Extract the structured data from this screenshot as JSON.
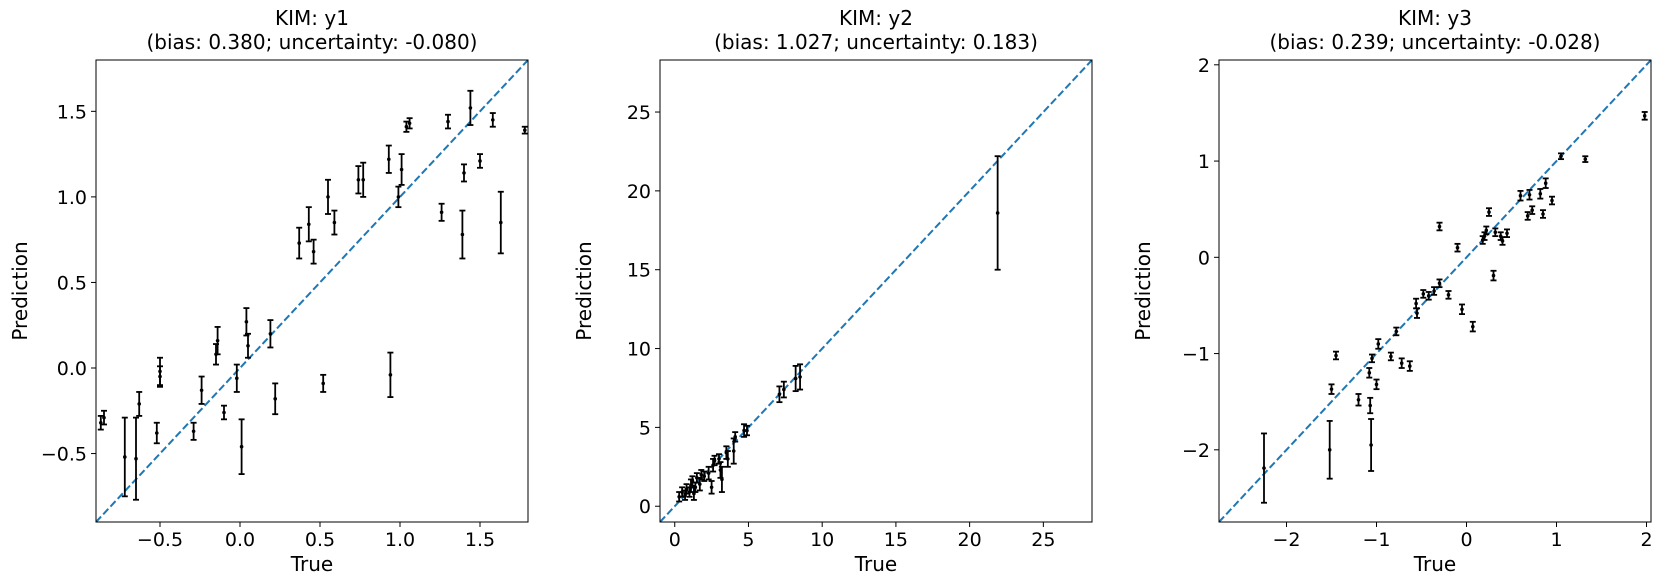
{
  "chart_data": [
    {
      "type": "scatter",
      "title": "KIM: y1",
      "subtitle": "(bias: 0.380; uncertainty: -0.080)",
      "xlabel": "True",
      "ylabel": "Prediction",
      "xlim": [
        -0.9,
        1.8
      ],
      "ylim": [
        -0.9,
        1.8
      ],
      "xticks": [
        -0.5,
        0.0,
        0.5,
        1.0,
        1.5
      ],
      "xtick_labels": [
        "−0.5",
        "0.0",
        "0.5",
        "1.0",
        "1.5"
      ],
      "yticks": [
        -0.5,
        0.0,
        0.5,
        1.0,
        1.5
      ],
      "ytick_labels": [
        "−0.5",
        "0.0",
        "0.5",
        "1.0",
        "1.5"
      ],
      "reference_line": "y = x",
      "colors": {
        "reference": "#1f77b4",
        "points": "#000000"
      },
      "points": [
        {
          "x": -0.87,
          "y": -0.32,
          "err": 0.04
        },
        {
          "x": -0.85,
          "y": -0.29,
          "err": 0.04
        },
        {
          "x": -0.72,
          "y": -0.52,
          "err": 0.23
        },
        {
          "x": -0.65,
          "y": -0.53,
          "err": 0.24
        },
        {
          "x": -0.63,
          "y": -0.21,
          "err": 0.07
        },
        {
          "x": -0.52,
          "y": -0.38,
          "err": 0.06
        },
        {
          "x": -0.5,
          "y": -0.02,
          "err": 0.08
        },
        {
          "x": -0.5,
          "y": -0.05,
          "err": 0.06
        },
        {
          "x": -0.29,
          "y": -0.37,
          "err": 0.05
        },
        {
          "x": -0.24,
          "y": -0.13,
          "err": 0.08
        },
        {
          "x": -0.15,
          "y": 0.08,
          "err": 0.06
        },
        {
          "x": -0.14,
          "y": 0.16,
          "err": 0.08
        },
        {
          "x": -0.1,
          "y": -0.26,
          "err": 0.04
        },
        {
          "x": -0.02,
          "y": -0.06,
          "err": 0.08
        },
        {
          "x": 0.01,
          "y": -0.46,
          "err": 0.16
        },
        {
          "x": 0.04,
          "y": 0.27,
          "err": 0.08
        },
        {
          "x": 0.05,
          "y": 0.13,
          "err": 0.07
        },
        {
          "x": 0.19,
          "y": 0.2,
          "err": 0.08
        },
        {
          "x": 0.22,
          "y": -0.18,
          "err": 0.09
        },
        {
          "x": 0.37,
          "y": 0.73,
          "err": 0.09
        },
        {
          "x": 0.43,
          "y": 0.84,
          "err": 0.1
        },
        {
          "x": 0.46,
          "y": 0.68,
          "err": 0.07
        },
        {
          "x": 0.52,
          "y": -0.09,
          "err": 0.05
        },
        {
          "x": 0.55,
          "y": 1.0,
          "err": 0.1
        },
        {
          "x": 0.59,
          "y": 0.85,
          "err": 0.07
        },
        {
          "x": 0.74,
          "y": 1.1,
          "err": 0.08
        },
        {
          "x": 0.77,
          "y": 1.1,
          "err": 0.1
        },
        {
          "x": 0.93,
          "y": 1.22,
          "err": 0.08
        },
        {
          "x": 0.94,
          "y": -0.04,
          "err": 0.13
        },
        {
          "x": 0.99,
          "y": 1.0,
          "err": 0.06
        },
        {
          "x": 1.01,
          "y": 1.16,
          "err": 0.09
        },
        {
          "x": 1.04,
          "y": 1.41,
          "err": 0.03
        },
        {
          "x": 1.06,
          "y": 1.43,
          "err": 0.03
        },
        {
          "x": 1.26,
          "y": 0.91,
          "err": 0.05
        },
        {
          "x": 1.3,
          "y": 1.44,
          "err": 0.04
        },
        {
          "x": 1.39,
          "y": 0.78,
          "err": 0.14
        },
        {
          "x": 1.4,
          "y": 1.14,
          "err": 0.05
        },
        {
          "x": 1.44,
          "y": 1.52,
          "err": 0.1
        },
        {
          "x": 1.5,
          "y": 1.21,
          "err": 0.04
        },
        {
          "x": 1.58,
          "y": 1.45,
          "err": 0.04
        },
        {
          "x": 1.63,
          "y": 0.85,
          "err": 0.18
        },
        {
          "x": 1.78,
          "y": 1.39,
          "err": 0.02
        }
      ]
    },
    {
      "type": "scatter",
      "title": "KIM: y2",
      "subtitle": "(bias: 1.027; uncertainty: 0.183)",
      "xlabel": "True",
      "ylabel": "Prediction",
      "xlim": [
        -1,
        28.3
      ],
      "ylim": [
        -1,
        28.3
      ],
      "xticks": [
        0,
        5,
        10,
        15,
        20,
        25
      ],
      "xtick_labels": [
        "0",
        "5",
        "10",
        "15",
        "20",
        "25"
      ],
      "yticks": [
        0,
        5,
        10,
        15,
        20,
        25
      ],
      "ytick_labels": [
        "0",
        "5",
        "10",
        "15",
        "20",
        "25"
      ],
      "reference_line": "y = x",
      "colors": {
        "reference": "#1f77b4",
        "points": "#000000"
      },
      "points": [
        {
          "x": 0.3,
          "y": 0.6,
          "err": 0.3
        },
        {
          "x": 0.5,
          "y": 0.9,
          "err": 0.3
        },
        {
          "x": 0.7,
          "y": 0.7,
          "err": 0.3
        },
        {
          "x": 0.8,
          "y": 1.1,
          "err": 0.3
        },
        {
          "x": 1.0,
          "y": 0.9,
          "err": 0.3
        },
        {
          "x": 1.1,
          "y": 1.3,
          "err": 0.4
        },
        {
          "x": 1.2,
          "y": 1.6,
          "err": 0.3
        },
        {
          "x": 1.3,
          "y": 0.8,
          "err": 0.4
        },
        {
          "x": 1.4,
          "y": 1.2,
          "err": 0.3
        },
        {
          "x": 1.5,
          "y": 1.8,
          "err": 0.3
        },
        {
          "x": 1.7,
          "y": 1.4,
          "err": 0.4
        },
        {
          "x": 1.8,
          "y": 2.0,
          "err": 0.3
        },
        {
          "x": 2.0,
          "y": 1.9,
          "err": 0.3
        },
        {
          "x": 2.3,
          "y": 2.1,
          "err": 0.4
        },
        {
          "x": 2.5,
          "y": 1.2,
          "err": 0.4
        },
        {
          "x": 2.6,
          "y": 2.6,
          "err": 0.4
        },
        {
          "x": 2.7,
          "y": 2.9,
          "err": 0.3
        },
        {
          "x": 3.0,
          "y": 3.0,
          "err": 0.3
        },
        {
          "x": 3.1,
          "y": 2.3,
          "err": 0.5
        },
        {
          "x": 3.2,
          "y": 1.7,
          "err": 0.8
        },
        {
          "x": 3.5,
          "y": 3.4,
          "err": 0.4
        },
        {
          "x": 3.6,
          "y": 3.0,
          "err": 0.5
        },
        {
          "x": 4.0,
          "y": 3.5,
          "err": 0.8
        },
        {
          "x": 4.1,
          "y": 4.4,
          "err": 0.3
        },
        {
          "x": 4.7,
          "y": 4.8,
          "err": 0.4
        },
        {
          "x": 4.9,
          "y": 4.8,
          "err": 0.3
        },
        {
          "x": 7.1,
          "y": 7.1,
          "err": 0.5
        },
        {
          "x": 7.4,
          "y": 7.4,
          "err": 0.5
        },
        {
          "x": 8.2,
          "y": 8.1,
          "err": 0.8
        },
        {
          "x": 8.5,
          "y": 8.2,
          "err": 0.8
        },
        {
          "x": 21.9,
          "y": 18.6,
          "err": 3.6
        }
      ]
    },
    {
      "type": "scatter",
      "title": "KIM: y3",
      "subtitle": "(bias: 0.239; uncertainty: -0.028)",
      "xlabel": "True",
      "ylabel": "Prediction",
      "xlim": [
        -2.75,
        2.05
      ],
      "ylim": [
        -2.75,
        2.05
      ],
      "xticks": [
        -2,
        -1,
        0,
        1,
        2
      ],
      "xtick_labels": [
        "−2",
        "−1",
        "0",
        "1",
        "2"
      ],
      "yticks": [
        -2,
        -1,
        0,
        1,
        2
      ],
      "ytick_labels": [
        "−2",
        "−1",
        "0",
        "1",
        "2"
      ],
      "reference_line": "y = x",
      "colors": {
        "reference": "#1f77b4",
        "points": "#000000"
      },
      "points": [
        {
          "x": -2.25,
          "y": -2.19,
          "err": 0.36
        },
        {
          "x": -1.52,
          "y": -2.0,
          "err": 0.3
        },
        {
          "x": -1.5,
          "y": -1.37,
          "err": 0.05
        },
        {
          "x": -1.45,
          "y": -1.02,
          "err": 0.04
        },
        {
          "x": -1.2,
          "y": -1.48,
          "err": 0.06
        },
        {
          "x": -1.08,
          "y": -1.2,
          "err": 0.05
        },
        {
          "x": -1.07,
          "y": -1.54,
          "err": 0.08
        },
        {
          "x": -1.06,
          "y": -1.95,
          "err": 0.27
        },
        {
          "x": -1.05,
          "y": -1.05,
          "err": 0.04
        },
        {
          "x": -1.0,
          "y": -1.32,
          "err": 0.05
        },
        {
          "x": -0.98,
          "y": -0.9,
          "err": 0.05
        },
        {
          "x": -0.84,
          "y": -1.03,
          "err": 0.04
        },
        {
          "x": -0.78,
          "y": -0.77,
          "err": 0.04
        },
        {
          "x": -0.72,
          "y": -1.1,
          "err": 0.05
        },
        {
          "x": -0.63,
          "y": -1.13,
          "err": 0.05
        },
        {
          "x": -0.56,
          "y": -0.48,
          "err": 0.05
        },
        {
          "x": -0.55,
          "y": -0.58,
          "err": 0.05
        },
        {
          "x": -0.48,
          "y": -0.38,
          "err": 0.04
        },
        {
          "x": -0.42,
          "y": -0.4,
          "err": 0.04
        },
        {
          "x": -0.36,
          "y": -0.35,
          "err": 0.04
        },
        {
          "x": -0.3,
          "y": -0.27,
          "err": 0.04
        },
        {
          "x": -0.3,
          "y": 0.32,
          "err": 0.04
        },
        {
          "x": -0.2,
          "y": -0.39,
          "err": 0.04
        },
        {
          "x": -0.1,
          "y": 0.1,
          "err": 0.04
        },
        {
          "x": -0.05,
          "y": -0.54,
          "err": 0.05
        },
        {
          "x": 0.07,
          "y": -0.72,
          "err": 0.05
        },
        {
          "x": 0.18,
          "y": 0.18,
          "err": 0.04
        },
        {
          "x": 0.2,
          "y": 0.22,
          "err": 0.04
        },
        {
          "x": 0.22,
          "y": 0.28,
          "err": 0.04
        },
        {
          "x": 0.25,
          "y": 0.47,
          "err": 0.04
        },
        {
          "x": 0.3,
          "y": -0.19,
          "err": 0.05
        },
        {
          "x": 0.32,
          "y": 0.26,
          "err": 0.04
        },
        {
          "x": 0.38,
          "y": 0.22,
          "err": 0.04
        },
        {
          "x": 0.4,
          "y": 0.17,
          "err": 0.04
        },
        {
          "x": 0.45,
          "y": 0.25,
          "err": 0.04
        },
        {
          "x": 0.6,
          "y": 0.64,
          "err": 0.05
        },
        {
          "x": 0.68,
          "y": 0.43,
          "err": 0.04
        },
        {
          "x": 0.7,
          "y": 0.65,
          "err": 0.05
        },
        {
          "x": 0.73,
          "y": 0.49,
          "err": 0.04
        },
        {
          "x": 0.82,
          "y": 0.66,
          "err": 0.05
        },
        {
          "x": 0.85,
          "y": 0.45,
          "err": 0.04
        },
        {
          "x": 0.88,
          "y": 0.77,
          "err": 0.05
        },
        {
          "x": 0.95,
          "y": 0.59,
          "err": 0.04
        },
        {
          "x": 1.05,
          "y": 1.05,
          "err": 0.03
        },
        {
          "x": 1.32,
          "y": 1.02,
          "err": 0.03
        },
        {
          "x": 1.98,
          "y": 1.47,
          "err": 0.04
        }
      ]
    }
  ]
}
